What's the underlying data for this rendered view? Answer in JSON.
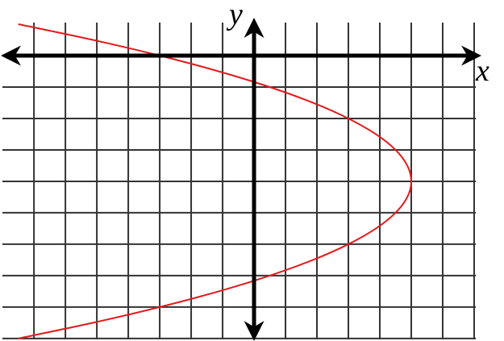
{
  "chart_data": {
    "type": "line",
    "xlabel": "x",
    "ylabel": "y",
    "x": [
      -7.5,
      -5.125,
      -3,
      -1.125,
      0.5,
      1.875,
      3,
      3.875,
      4.5,
      4.875,
      5,
      4.875,
      4.5,
      3.875,
      3,
      1.875,
      0.5,
      -1.125,
      -3,
      -5.125,
      -7.5
    ],
    "series": [
      {
        "color": "#e41a1c",
        "values": [
          1,
          0.5,
          0,
          -0.5,
          -1,
          -1.5,
          -2,
          -2.5,
          -3,
          -3.5,
          -4,
          -4.5,
          -5,
          -5.5,
          -6,
          -6.5,
          -7,
          -7.5,
          -8,
          -8.5,
          -9
        ]
      }
    ],
    "xlim": [
      -8.08,
      7.95
    ],
    "ylim": [
      -9.08,
      1.77
    ],
    "xticks": [
      -7,
      -6,
      -5,
      -4,
      -3,
      -2,
      -1,
      0,
      1,
      2,
      3,
      4,
      5,
      6,
      7
    ],
    "yticks": [
      -9,
      -8,
      -7,
      -6,
      -5,
      -4,
      -3,
      -2,
      -1,
      0
    ],
    "grid": true
  }
}
